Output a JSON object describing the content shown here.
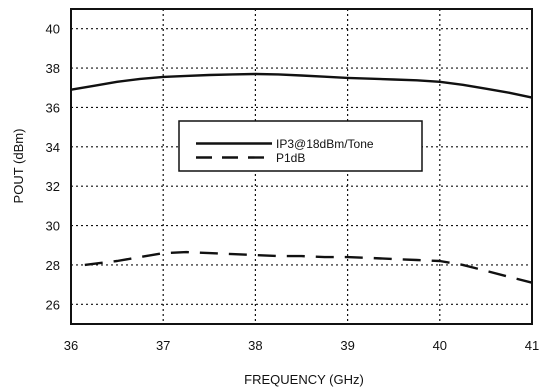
{
  "chart_data": {
    "type": "line",
    "xlabel": "FREQUENCY (GHz)",
    "ylabel": "POUT (dBm)",
    "xlim": [
      36,
      41
    ],
    "ylim": [
      25,
      41
    ],
    "xticks": [
      36,
      37,
      38,
      39,
      40,
      41
    ],
    "yticks": [
      26,
      28,
      30,
      32,
      34,
      36,
      38,
      40
    ],
    "grid": true,
    "legend_position": "center",
    "series": [
      {
        "name": "IP3@18dBm/Tone",
        "style": "solid",
        "x": [
          36.0,
          36.25,
          36.5,
          36.75,
          37.0,
          37.25,
          37.5,
          37.75,
          38.0,
          38.25,
          38.5,
          38.75,
          39.0,
          39.25,
          39.5,
          39.75,
          40.0,
          40.25,
          40.5,
          40.75,
          41.0
        ],
        "y": [
          36.9,
          37.1,
          37.3,
          37.45,
          37.55,
          37.6,
          37.65,
          37.68,
          37.7,
          37.68,
          37.62,
          37.56,
          37.5,
          37.46,
          37.42,
          37.38,
          37.3,
          37.15,
          36.95,
          36.75,
          36.5
        ]
      },
      {
        "name": "P1dB",
        "style": "dashed",
        "x": [
          36.15,
          36.5,
          36.75,
          37.0,
          37.25,
          37.5,
          37.75,
          38.0,
          38.25,
          38.5,
          38.75,
          39.0,
          39.25,
          39.5,
          39.75,
          40.0,
          40.25,
          40.5,
          40.75,
          41.0
        ],
        "y": [
          28.0,
          28.2,
          28.4,
          28.6,
          28.65,
          28.6,
          28.55,
          28.5,
          28.45,
          28.45,
          28.4,
          28.4,
          28.35,
          28.3,
          28.25,
          28.2,
          28.0,
          27.7,
          27.4,
          27.1
        ]
      }
    ]
  }
}
